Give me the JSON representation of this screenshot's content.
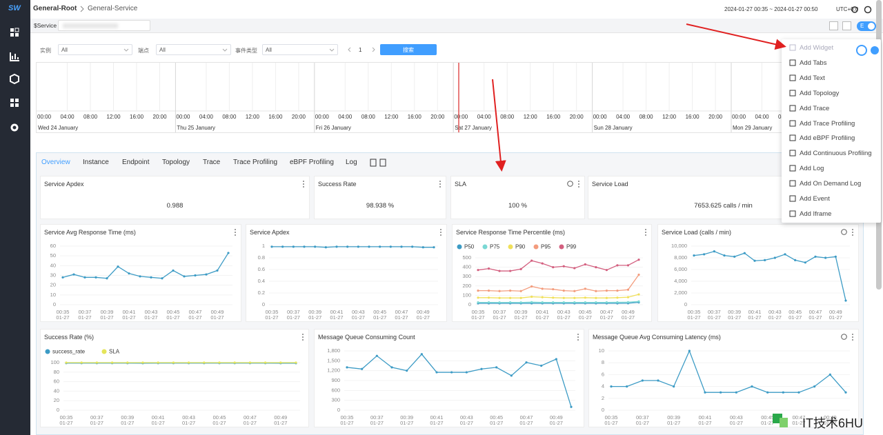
{
  "sidebar": {
    "logo": "SW"
  },
  "breadcrumb": [
    "General-Root",
    "General-Service"
  ],
  "time_range": "2024-01-27 00:35 ~ 2024-01-27 00:50",
  "timezone": "UTC+0:0",
  "service_selector": {
    "label": "$Service"
  },
  "edit_toggle": "E",
  "filters": [
    {
      "label": "实例",
      "value": "All"
    },
    {
      "label": "端点",
      "value": "All"
    },
    {
      "label": "事件类型",
      "value": "All"
    }
  ],
  "pagination": {
    "page": 1
  },
  "search_button": "搜索",
  "timeline": {
    "days": [
      "Wed 24 January",
      "Thu 25 January",
      "Fri 26 January",
      "Sat 27 January",
      "Sun 28 January",
      "Mon 29 January"
    ],
    "hours": [
      "00:00",
      "04:00",
      "08:00",
      "12:00",
      "16:00",
      "20:00"
    ]
  },
  "tabs": [
    "Overview",
    "Instance",
    "Endpoint",
    "Topology",
    "Trace",
    "Trace Profiling",
    "eBPF Profiling",
    "Log"
  ],
  "active_tab": 0,
  "cards": [
    {
      "title": "Service Apdex",
      "value": 0.988
    },
    {
      "title": "Success Rate",
      "value": 98.938,
      "unit": "%"
    },
    {
      "title": "SLA",
      "value": 100,
      "unit": "%"
    },
    {
      "title": "Service Load",
      "value": 7653.625,
      "unit": "calls / min"
    }
  ],
  "x_axis": {
    "categories": [
      "00:35",
      null,
      "00:37",
      null,
      "00:39",
      null,
      "00:41",
      null,
      "00:43",
      null,
      "00:45",
      null,
      "00:47",
      null,
      "00:49",
      null
    ],
    "date": "01-27"
  },
  "charts": [
    {
      "type": "line",
      "title": "Service Avg Response Time (ms)",
      "ylim": [
        0,
        60
      ],
      "yticks": [
        0,
        10,
        20,
        30,
        40,
        50,
        60
      ],
      "series": [
        {
          "color": "#3c9bc5",
          "values": [
            28,
            31,
            28,
            28,
            27,
            39,
            32,
            29,
            28,
            27,
            35,
            29,
            30,
            31,
            35,
            53
          ]
        }
      ]
    },
    {
      "type": "line",
      "title": "Service Apdex",
      "ylim": [
        0,
        1
      ],
      "yticks": [
        0,
        0.2,
        0.4,
        0.6,
        0.8,
        1
      ],
      "series": [
        {
          "color": "#3c9bc5",
          "values": [
            0.99,
            0.99,
            0.99,
            0.99,
            0.99,
            0.98,
            0.99,
            0.99,
            0.99,
            0.99,
            0.99,
            0.99,
            0.99,
            0.99,
            0.98,
            0.98
          ]
        }
      ]
    },
    {
      "type": "line",
      "title": "Service Response Time Percentile (ms)",
      "legend": true,
      "ylim": [
        0,
        500
      ],
      "yticks": [
        0,
        100,
        200,
        300,
        400,
        500
      ],
      "series": [
        {
          "name": "P50",
          "color": "#3c9bc5",
          "values": [
            15,
            15,
            15,
            15,
            15,
            15,
            15,
            15,
            15,
            15,
            15,
            15,
            15,
            15,
            16,
            25
          ]
        },
        {
          "name": "P75",
          "color": "#7ad8d4",
          "values": [
            25,
            25,
            24,
            25,
            24,
            27,
            25,
            25,
            25,
            25,
            25,
            25,
            25,
            26,
            27,
            35
          ]
        },
        {
          "name": "P90",
          "color": "#f0e05a",
          "values": [
            75,
            75,
            72,
            72,
            72,
            85,
            80,
            75,
            72,
            72,
            75,
            72,
            72,
            75,
            80,
            110
          ]
        },
        {
          "name": "P95",
          "color": "#f39c7d",
          "values": [
            150,
            150,
            145,
            150,
            145,
            195,
            170,
            165,
            150,
            145,
            170,
            145,
            150,
            150,
            160,
            320
          ]
        },
        {
          "name": "P99",
          "color": "#d35f7f",
          "values": [
            370,
            385,
            360,
            360,
            380,
            470,
            440,
            400,
            410,
            390,
            430,
            400,
            370,
            420,
            420,
            480
          ]
        }
      ]
    },
    {
      "type": "line",
      "title": "Service Load (calls / min)",
      "ylim": [
        0,
        10000
      ],
      "yticks": [
        0,
        {
          "value": 2000,
          "label": "2,000"
        },
        {
          "value": 4000,
          "label": "4,000"
        },
        {
          "value": 6000,
          "label": "6,000"
        },
        {
          "value": 8000,
          "label": "8,000"
        },
        {
          "value": 10000,
          "label": "10,000"
        }
      ],
      "series": [
        {
          "color": "#3c9bc5",
          "values": [
            8400,
            8600,
            9100,
            8400,
            8200,
            8800,
            7500,
            7600,
            8000,
            8600,
            7600,
            7200,
            8200,
            8000,
            8200,
            700
          ]
        }
      ]
    },
    {
      "type": "line",
      "title": "Success Rate (%)",
      "legend": true,
      "ylim": [
        0,
        100
      ],
      "yticks": [
        0,
        20,
        40,
        60,
        80,
        100
      ],
      "series": [
        {
          "name": "success_rate",
          "color": "#3c9bc5",
          "values": [
            98.9,
            98.9,
            98.9,
            98.9,
            98.9,
            98.8,
            98.9,
            98.9,
            98.9,
            98.9,
            98.9,
            98.9,
            98.9,
            98.9,
            98.8,
            98.8
          ]
        },
        {
          "name": "SLA",
          "color": "#e5e55a",
          "values": [
            100,
            100,
            100,
            100,
            100,
            100,
            100,
            100,
            100,
            100,
            100,
            100,
            100,
            100,
            100,
            100
          ]
        }
      ]
    },
    {
      "type": "line",
      "title": "Message Queue Consuming Count",
      "ylim": [
        0,
        1800
      ],
      "yticks": [
        0,
        300,
        600,
        900,
        {
          "value": 1200,
          "label": "1,200"
        },
        {
          "value": 1500,
          "label": "1,500"
        },
        {
          "value": 1800,
          "label": "1,800"
        }
      ],
      "series": [
        {
          "color": "#3c9bc5",
          "values": [
            1300,
            1250,
            1650,
            1300,
            1200,
            1700,
            1150,
            1150,
            1150,
            1250,
            1300,
            1050,
            1450,
            1350,
            1550,
            100
          ]
        }
      ]
    },
    {
      "type": "line",
      "title": "Message Queue Avg Consuming Latency (ms)",
      "ylim": [
        0,
        10
      ],
      "yticks": [
        0,
        2,
        4,
        6,
        8,
        10
      ],
      "series": [
        {
          "color": "#3c9bc5",
          "values": [
            4,
            4,
            5,
            5,
            4,
            10,
            3,
            3,
            3,
            4,
            3,
            3,
            3,
            4,
            6,
            3
          ]
        }
      ]
    }
  ],
  "menu": [
    "Add Widget",
    "Add Tabs",
    "Add Text",
    "Add Topology",
    "Add Trace",
    "Add Trace Profiling",
    "Add eBPF Profiling",
    "Add Continuous Profiling",
    "Add Log",
    "Add On Demand Log",
    "Add Event",
    "Add Iframe"
  ],
  "watermark": "IT技术6HU"
}
